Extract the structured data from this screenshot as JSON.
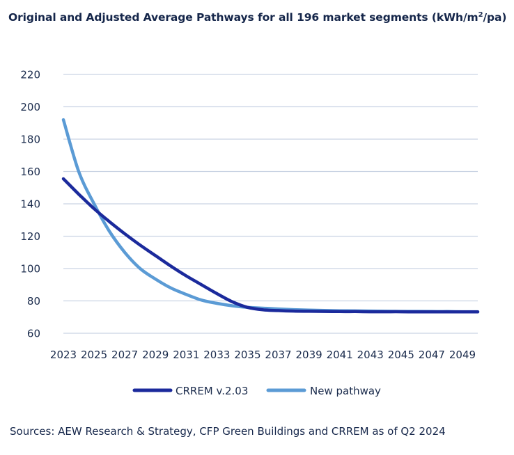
{
  "chart_data": {
    "type": "line",
    "title": "Original and Adjusted Average Pathways for all 196 market segments (kWh/m",
    "title_sup": "2",
    "title_tail": "/pa)",
    "source": "Sources: AEW Research & Strategy, CFP Green Buildings and CRREM as of Q2 2024",
    "xlabel": "",
    "ylabel": "",
    "ylim": [
      60,
      220
    ],
    "yticks": [
      60,
      80,
      100,
      120,
      140,
      160,
      180,
      200,
      220
    ],
    "xlim": [
      2023,
      2050
    ],
    "xticks": [
      2023,
      2025,
      2027,
      2029,
      2031,
      2033,
      2035,
      2037,
      2039,
      2041,
      2043,
      2045,
      2047,
      2049
    ],
    "grid": "horizontal",
    "legend_position": "bottom",
    "x": [
      2023,
      2024,
      2025,
      2026,
      2027,
      2028,
      2029,
      2030,
      2031,
      2032,
      2033,
      2034,
      2035,
      2036,
      2037,
      2038,
      2039,
      2040,
      2041,
      2042,
      2043,
      2044,
      2045,
      2046,
      2047,
      2048,
      2049,
      2050
    ],
    "series": [
      {
        "name": "CRREM v.2.03",
        "color": "#1b2a9c",
        "values": [
          155.5,
          146,
          137,
          129,
          121.5,
          114.5,
          108,
          101.5,
          95.5,
          90,
          84.5,
          79.5,
          76,
          74.5,
          74,
          73.7,
          73.6,
          73.5,
          73.4,
          73.4,
          73.3,
          73.3,
          73.3,
          73.2,
          73.2,
          73.2,
          73.2,
          73.2
        ]
      },
      {
        "name": "New pathway",
        "color": "#5b9bd5",
        "values": [
          192,
          160,
          140,
          123,
          110,
          100,
          93.5,
          88,
          84,
          80.5,
          78.5,
          77,
          76,
          75.5,
          75,
          74.6,
          74.3,
          74.1,
          73.9,
          73.8,
          73.7,
          73.6,
          73.5,
          73.5,
          73.4,
          73.4,
          73.3,
          73.3
        ]
      }
    ]
  }
}
